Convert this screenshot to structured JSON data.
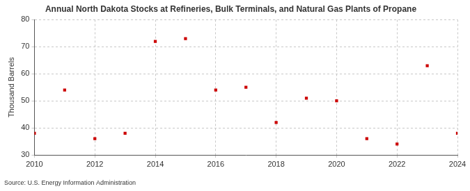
{
  "chart_data": {
    "type": "scatter",
    "title": "Annual North Dakota Stocks at Refineries, Bulk Terminals, and Natural Gas Plants of Propane",
    "y_label": "Thousand Barrels",
    "source": "Source: U.S. Energy Information Administration",
    "x": [
      2010,
      2011,
      2012,
      2013,
      2014,
      2015,
      2016,
      2017,
      2018,
      2019,
      2020,
      2021,
      2022,
      2023,
      2024
    ],
    "values": [
      38,
      54,
      36,
      38,
      72,
      73,
      54,
      55,
      42,
      51,
      50,
      36,
      34,
      63,
      38
    ],
    "color": "#cc0000",
    "marker": "square",
    "xlim": [
      2010,
      2024
    ],
    "xticks": [
      2010,
      2012,
      2014,
      2016,
      2018,
      2020,
      2022,
      2024
    ],
    "ylim": [
      30,
      80
    ],
    "yticks": [
      30,
      40,
      50,
      60,
      70,
      80
    ],
    "grid": true
  }
}
